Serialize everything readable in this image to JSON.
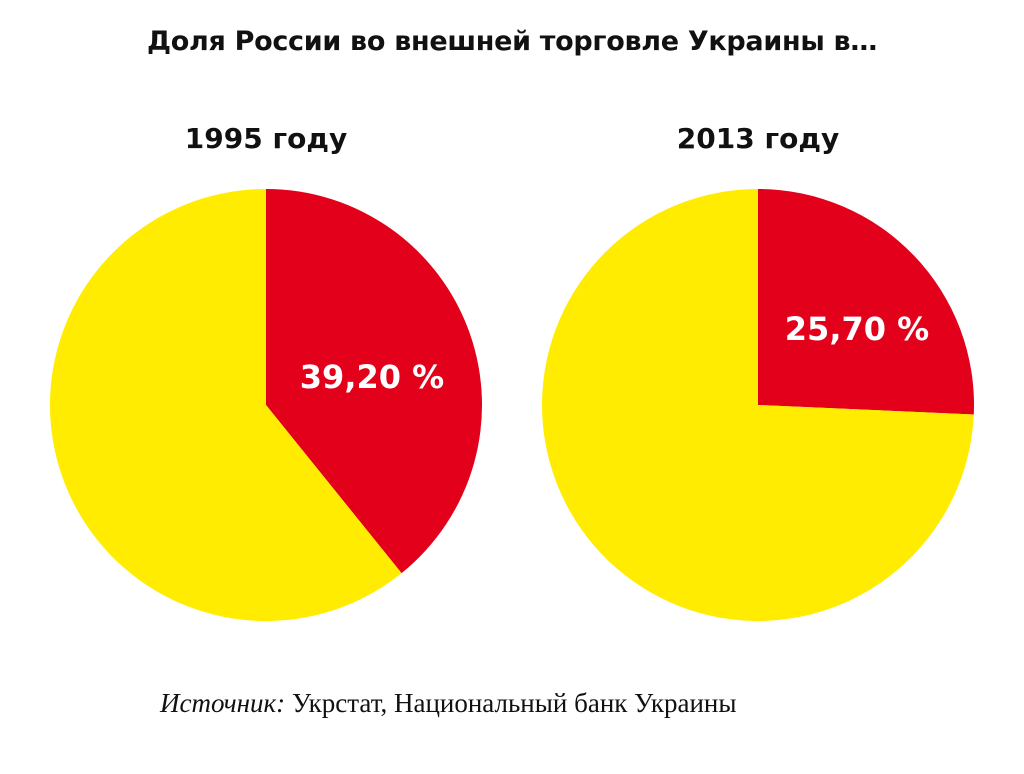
{
  "title": "Доля России во внешней торговле Украины в…",
  "source": {
    "prefix": "Источник:",
    "text": " Укрстат, Национальный банк Украины"
  },
  "colors": {
    "highlight": "#E2001A",
    "rest": "#FFEC00"
  },
  "chart_data": [
    {
      "type": "pie",
      "title": "1995 году",
      "slices": [
        {
          "value": 39.2,
          "color": "#E2001A",
          "label": "39,20 %"
        },
        {
          "value": 60.8,
          "color": "#FFEC00",
          "label": ""
        }
      ]
    },
    {
      "type": "pie",
      "title": "2013 году",
      "slices": [
        {
          "value": 25.7,
          "color": "#E2001A",
          "label": "25,70 %"
        },
        {
          "value": 74.3,
          "color": "#FFEC00",
          "label": ""
        }
      ]
    }
  ]
}
